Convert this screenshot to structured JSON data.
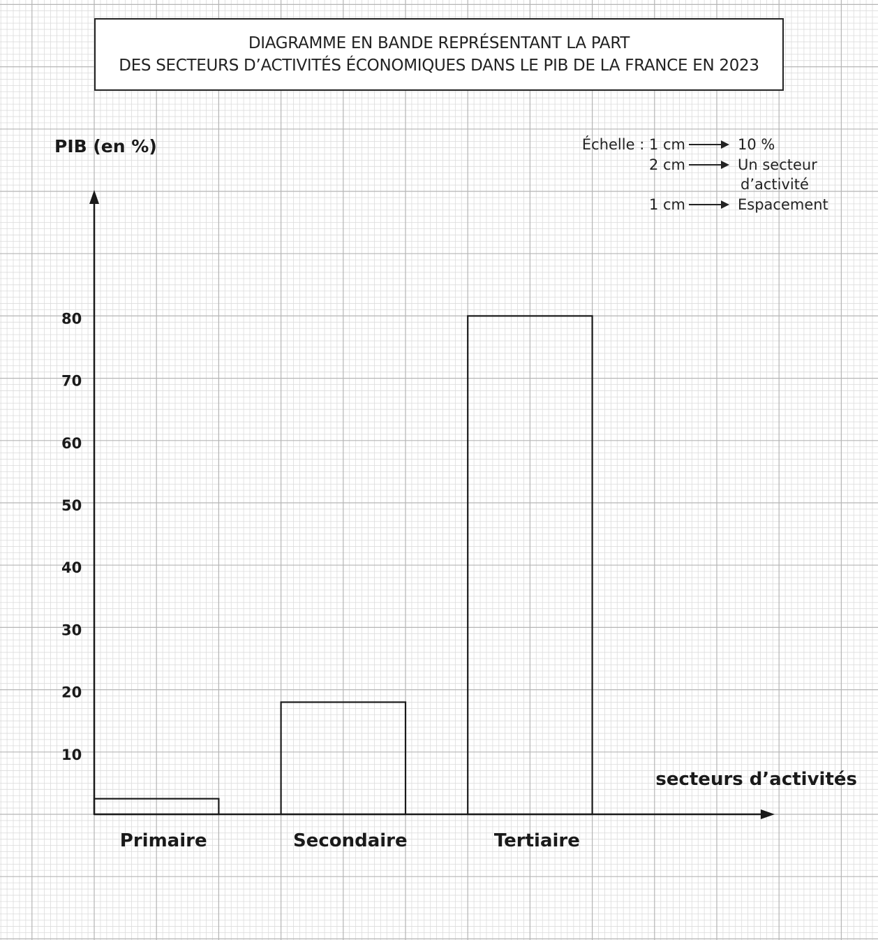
{
  "chart_data": {
    "type": "bar",
    "title": "DIAGRAMME EN BANDE REPRÉSENTANT LA PART DES SECTEURS D’ACTIVITÉS ÉCONOMIQUES DANS LE PIB DE LA FRANCE EN 2023",
    "title_lines": [
      "DIAGRAMME EN BANDE REPRÉSENTANT LA PART",
      "DES SECTEURS D’ACTIVITÉS ÉCONOMIQUES DANS LE PIB DE LA FRANCE EN 2023"
    ],
    "categories": [
      "Primaire",
      "Secondaire",
      "Tertiaire"
    ],
    "values": [
      2.5,
      18,
      80
    ],
    "xlabel": "secteurs d’activités",
    "ylabel": "PIB (en %)",
    "ylim": [
      0,
      90
    ],
    "yticks": [
      "10",
      "20",
      "30",
      "40",
      "50",
      "60",
      "70",
      "80"
    ],
    "grid": true,
    "bar_fill": "none",
    "bar_stroke": "#1a1a1a",
    "grid_color": "#b5b5b5",
    "scale_legend": [
      {
        "left": "Échelle : 1 cm",
        "right": "10 %"
      },
      {
        "left": "2 cm",
        "right": "Un secteur"
      },
      {
        "left": "",
        "right": "d’activité"
      },
      {
        "left": "1 cm",
        "right": "Espacement"
      }
    ]
  }
}
